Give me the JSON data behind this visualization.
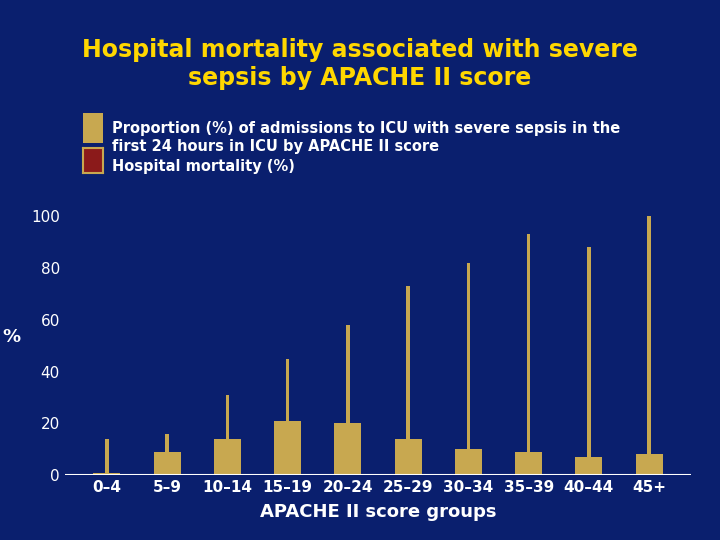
{
  "title": "Hospital mortality associated with severe\nsepsis by APACHE II score",
  "xlabel": "APACHE II score groups",
  "ylabel": "%",
  "categories": [
    "0–4",
    "5–9",
    "10–14",
    "15–19",
    "20–24",
    "25–29",
    "30–34",
    "35–39",
    "40–44",
    "45+"
  ],
  "bar_values": [
    1,
    9,
    14,
    21,
    20,
    14,
    10,
    9,
    7,
    8
  ],
  "mortality_values": [
    14,
    16,
    31,
    45,
    58,
    73,
    82,
    93,
    88,
    100
  ],
  "bar_color": "#c8a850",
  "mortality_color": "#8b1a1a",
  "mortality_line_color": "#c8a850",
  "background_color": "#0a1f6e",
  "plot_bg_color": "#0a1f6e",
  "title_color": "#ffd700",
  "tick_color": "#ffffff",
  "legend_text_color": "#ffffff",
  "ylim": [
    0,
    100
  ],
  "yticks": [
    0,
    20,
    40,
    60,
    80,
    100
  ],
  "title_fontsize": 17,
  "axis_label_fontsize": 13,
  "tick_fontsize": 11,
  "legend_fontsize": 10.5
}
